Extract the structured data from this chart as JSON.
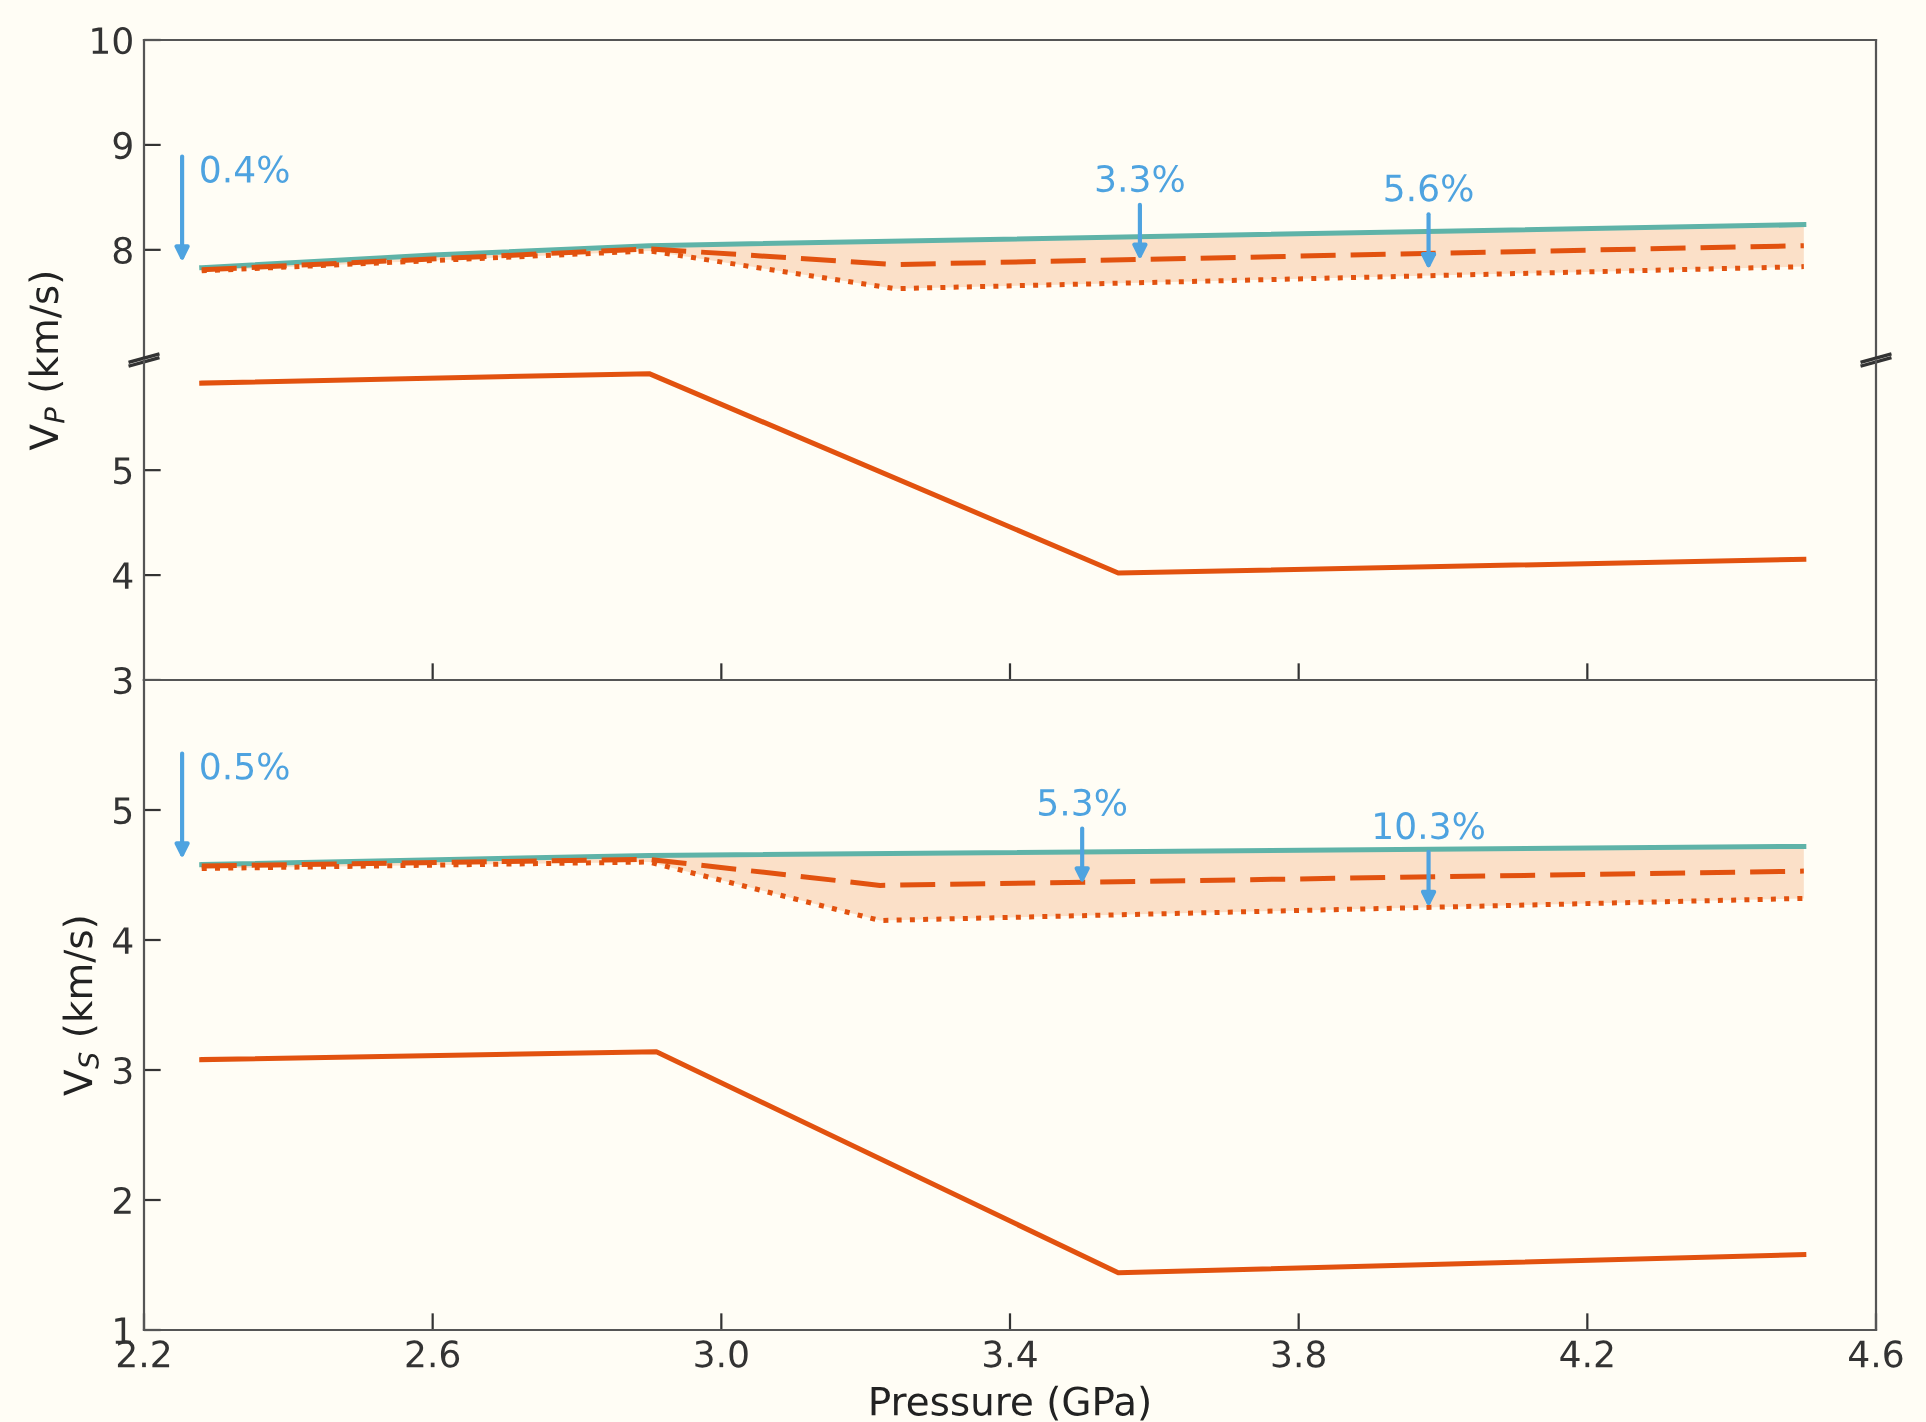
{
  "chart_data": [
    {
      "type": "line",
      "ylabel": "V$_{P}$ (km/s)",
      "xlim": [
        2.2,
        4.6
      ],
      "ylim": [
        6.95,
        10
      ],
      "yticks": [
        8,
        9,
        10
      ],
      "tick_labels": "y",
      "grid": false,
      "legend": false,
      "series": [
        {
          "color": "#5fb3a8",
          "line_style": "solid",
          "x": [
            2.28,
            2.6,
            2.9,
            4.5
          ],
          "values": [
            7.83,
            7.95,
            8.04,
            8.24
          ]
        },
        {
          "color": "#e2520f",
          "line_style": "dashed",
          "x": [
            2.28,
            2.9,
            3.24,
            4.5
          ],
          "values": [
            7.81,
            8.01,
            7.86,
            8.04
          ],
          "lower": [
            7.8,
            7.99,
            7.63,
            7.84
          ],
          "upper": [
            7.83,
            8.03,
            8.08,
            8.24
          ]
        },
        {
          "color": "#e2520f",
          "line_style": "dotted",
          "x": [
            2.28,
            2.9,
            3.24,
            4.5
          ],
          "values": [
            7.8,
            7.99,
            7.63,
            7.84
          ]
        }
      ],
      "annotations": [
        "0.4%",
        {
          "text": "3.3%",
          "x": 3.58,
          "y": 7.9
        },
        {
          "text": "5.6%",
          "x": 3.98,
          "y": 7.81
        }
      ]
    },
    {
      "type": "line",
      "xlim": [
        2.2,
        4.6
      ],
      "xticks": [
        2.6,
        3,
        3.4,
        3.8,
        4.2
      ],
      "ylim": [
        3,
        6.05
      ],
      "yticks": [
        3,
        4,
        5
      ],
      "tick_labels": "y",
      "grid": false,
      "legend": false,
      "series": [
        {
          "color": "#e2520f",
          "line_style": "solid",
          "x": [
            2.28,
            2.9,
            3.55,
            4.5
          ],
          "values": [
            5.83,
            5.92,
            4.02,
            4.15
          ]
        }
      ]
    },
    {
      "type": "line",
      "ylabel": "V$_{S}$ (km/s)",
      "xlabel": "Pressure (GPa)",
      "xlim": [
        2.2,
        4.6
      ],
      "xticks": [
        2.2,
        2.6,
        {
          "value": 3,
          "label": "3.0"
        },
        3.4,
        3.8,
        4.2,
        4.6
      ],
      "ylim": [
        1,
        6
      ],
      "yticks": [
        1,
        2,
        3,
        4,
        5
      ],
      "grid": false,
      "legend": false,
      "series": [
        {
          "color": "#5fb3a8",
          "line_style": "solid",
          "x": [
            2.28,
            2.9,
            4.5
          ],
          "values": [
            4.58,
            4.65,
            4.72
          ]
        },
        {
          "color": "#e2520f",
          "line_style": "dashed",
          "x": [
            2.28,
            2.9,
            3.22,
            4.5
          ],
          "values": [
            4.57,
            4.62,
            4.42,
            4.53
          ],
          "lower": [
            4.55,
            4.6,
            4.15,
            4.32
          ],
          "upper": [
            4.58,
            4.65,
            4.66,
            4.72
          ]
        },
        {
          "color": "#e2520f",
          "line_style": "dotted",
          "x": [
            2.28,
            2.9,
            3.22,
            4.5
          ],
          "values": [
            4.55,
            4.6,
            4.15,
            4.32
          ]
        },
        {
          "color": "#e2520f",
          "line_style": "solid",
          "x": [
            2.28,
            2.91,
            3.55,
            4.5
          ],
          "values": [
            3.08,
            3.14,
            1.44,
            1.58
          ]
        }
      ],
      "annotations": [
        "0.5%",
        {
          "text": "5.3%",
          "x": 3.5,
          "y": 4.43
        },
        {
          "text": "10.3%",
          "x": 3.98,
          "y": 4.25
        }
      ]
    }
  ]
}
